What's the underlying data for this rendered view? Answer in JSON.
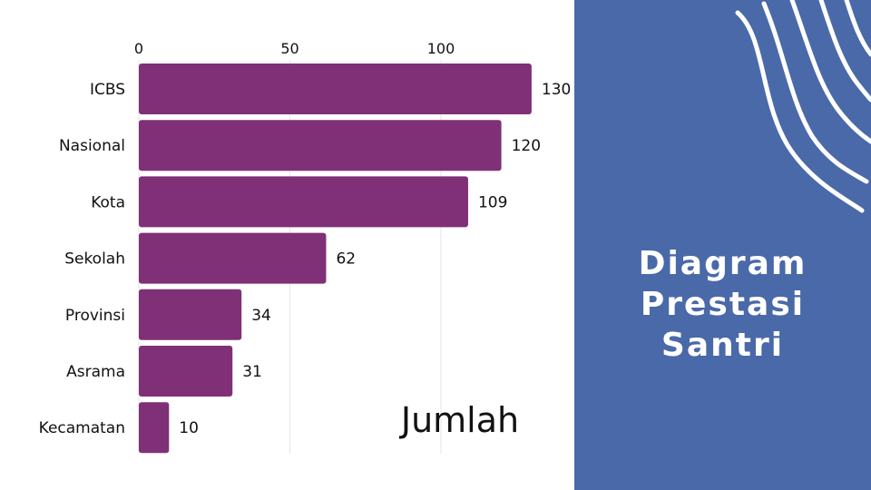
{
  "chart_data": {
    "type": "bar",
    "orientation": "horizontal",
    "categories": [
      "ICBS",
      "Nasional",
      "Kota",
      "Sekolah",
      "Provinsi",
      "Asrama",
      "Kecamatan"
    ],
    "values": [
      130,
      120,
      109,
      62,
      34,
      31,
      10
    ],
    "xlabel": "Jumlah",
    "xticks": [
      0,
      50,
      100
    ],
    "xlim": [
      0,
      140
    ],
    "axis_position": "top",
    "grid": true,
    "data_labels": true,
    "bar_color": "#7f3077"
  },
  "panel": {
    "title_lines": [
      "Diagram",
      "Prestasi",
      "Santri"
    ],
    "background": "#4a69a8"
  }
}
